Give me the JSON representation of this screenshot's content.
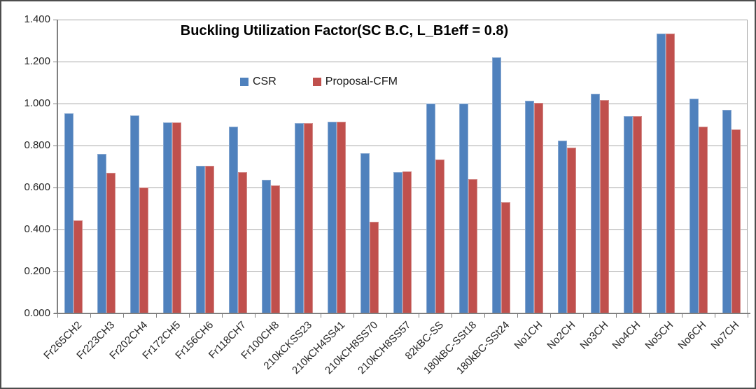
{
  "chart_data": {
    "type": "bar",
    "title": "Buckling Utilization Factor(SC B.C, L_B1eff = 0.8)",
    "categories": [
      "Fr265CH2",
      "Fr223CH3",
      "Fr202CH4",
      "Fr172CH5",
      "Fr156CH6",
      "Fr118CH7",
      "Fr100CH8",
      "210kCKSS23",
      "210kCH4SS41",
      "210kCH8SS70",
      "210kCH8SS57",
      "82kBC-SS",
      "180kBC-SSt18",
      "180kBC-SSt24",
      "No1CH",
      "No2CH",
      "No3CH",
      "No4CH",
      "No5CH",
      "No6CH",
      "No7CH"
    ],
    "series": [
      {
        "name": "CSR",
        "color": "#4f81bd",
        "values": [
          0.955,
          0.76,
          0.945,
          0.91,
          0.705,
          0.89,
          0.638,
          0.908,
          0.912,
          0.765,
          0.675,
          1.0,
          1.0,
          1.22,
          1.015,
          0.822,
          1.048,
          0.94,
          1.335,
          1.025,
          0.97
        ]
      },
      {
        "name": "Proposal-CFM",
        "color": "#c0504d",
        "values": [
          0.445,
          0.67,
          0.6,
          0.91,
          0.705,
          0.672,
          0.61,
          0.908,
          0.912,
          0.437,
          0.677,
          0.733,
          0.641,
          0.53,
          1.005,
          0.789,
          1.018,
          0.94,
          1.335,
          0.89,
          0.878
        ]
      }
    ],
    "xlabel": "",
    "ylabel": "",
    "ylim": [
      0,
      1.4
    ],
    "ytick_step": 0.2,
    "ytick_labels": [
      "0.000",
      "0.200",
      "0.400",
      "0.600",
      "0.800",
      "1.000",
      "1.200",
      "1.400"
    ],
    "grid": "horizontal",
    "legend_position": "inside-top-center",
    "x_label_rotation_deg": 45
  },
  "colors": {
    "bar_blue": "#4f81bd",
    "bar_red": "#c0504d",
    "gridline": "#a6a6a6",
    "axis_line": "#808080",
    "text": "#262626",
    "outer_border": "#4d4d4d"
  }
}
